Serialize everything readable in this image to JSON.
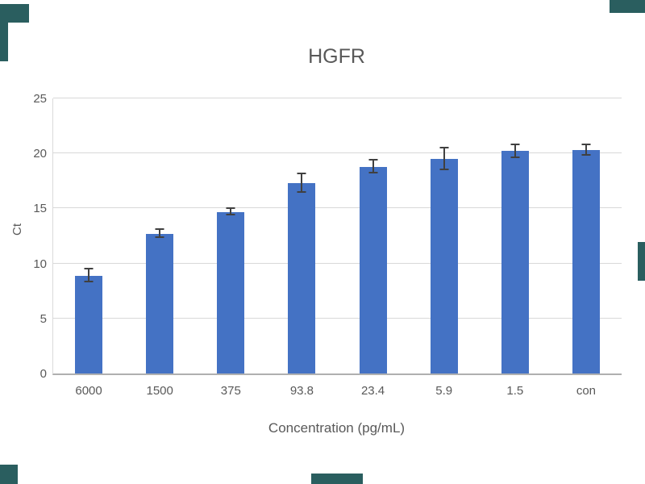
{
  "watermark_color": "#2a5e5f",
  "chart_data": {
    "type": "bar",
    "title": "HGFR",
    "xlabel": "Concentration (pg/mL)",
    "ylabel": "Ct",
    "categories": [
      "6000",
      "1500",
      "375",
      "93.8",
      "23.4",
      "5.9",
      "1.5",
      "con"
    ],
    "values": [
      8.9,
      12.7,
      14.7,
      17.3,
      18.8,
      19.5,
      20.2,
      20.3
    ],
    "errors": [
      0.6,
      0.4,
      0.3,
      0.9,
      0.6,
      1.0,
      0.6,
      0.5
    ],
    "ylim": [
      0,
      25
    ],
    "yticks": [
      0,
      5,
      10,
      15,
      20,
      25
    ],
    "bar_color": "#4472c4",
    "error_color": "#404040",
    "grid": true,
    "legend": false
  }
}
